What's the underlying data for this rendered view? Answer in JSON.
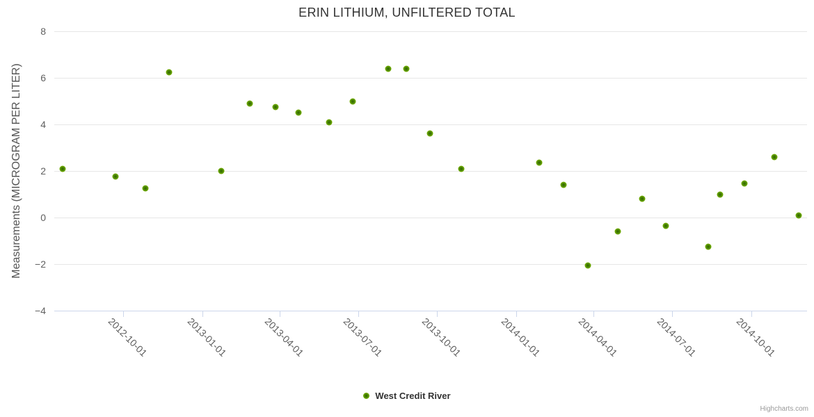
{
  "page": {
    "credits_label": "Highcharts.com"
  },
  "chart_data": {
    "type": "scatter",
    "title": "ERIN LITHIUM, UNFILTERED TOTAL",
    "xlabel": "",
    "ylabel": "Measurements (MICROGRAM PER LITER)",
    "ylim": [
      -4,
      8
    ],
    "y_tick_values": [
      8,
      6,
      4,
      2,
      0,
      -2,
      -4
    ],
    "y_tick_labels": [
      "8",
      "6",
      "4",
      "2",
      "0",
      "−2",
      "−4"
    ],
    "x_range": [
      "2012-07-13",
      "2014-12-05"
    ],
    "x_tick_dates": [
      "2012-10-01",
      "2013-01-01",
      "2013-04-01",
      "2013-07-01",
      "2013-10-01",
      "2014-01-01",
      "2014-04-01",
      "2014-07-01",
      "2014-10-01"
    ],
    "grid": "horizontal",
    "legend_position": "bottom-center",
    "colors": {
      "marker": "#77b300",
      "marker_center": "#2f6400",
      "grid": "#e6e6e6",
      "axis": "#ccd6eb",
      "title_text": "#333333",
      "tick_text": "#606060",
      "credits_text": "#999999"
    },
    "series": [
      {
        "name": "West Credit River",
        "points": [
          {
            "date": "2012-07-23",
            "value": 2.1
          },
          {
            "date": "2012-09-22",
            "value": 1.75
          },
          {
            "date": "2012-10-27",
            "value": 1.25
          },
          {
            "date": "2012-11-23",
            "value": 6.25
          },
          {
            "date": "2013-01-23",
            "value": 2.0
          },
          {
            "date": "2013-02-25",
            "value": 4.9
          },
          {
            "date": "2013-03-27",
            "value": 4.75
          },
          {
            "date": "2013-04-23",
            "value": 4.5
          },
          {
            "date": "2013-05-28",
            "value": 4.1
          },
          {
            "date": "2013-06-25",
            "value": 5.0
          },
          {
            "date": "2013-08-05",
            "value": 6.4
          },
          {
            "date": "2013-08-26",
            "value": 6.4
          },
          {
            "date": "2013-09-23",
            "value": 3.6
          },
          {
            "date": "2013-10-29",
            "value": 2.1
          },
          {
            "date": "2014-01-28",
            "value": 2.35
          },
          {
            "date": "2014-02-25",
            "value": 1.4
          },
          {
            "date": "2014-03-25",
            "value": -2.05
          },
          {
            "date": "2014-04-29",
            "value": -0.6
          },
          {
            "date": "2014-05-27",
            "value": 0.8
          },
          {
            "date": "2014-06-24",
            "value": -0.35
          },
          {
            "date": "2014-08-12",
            "value": -1.25
          },
          {
            "date": "2014-08-26",
            "value": 1.0
          },
          {
            "date": "2014-09-23",
            "value": 1.45
          },
          {
            "date": "2014-10-28",
            "value": 2.6
          },
          {
            "date": "2014-11-25",
            "value": 0.1
          }
        ]
      }
    ]
  }
}
